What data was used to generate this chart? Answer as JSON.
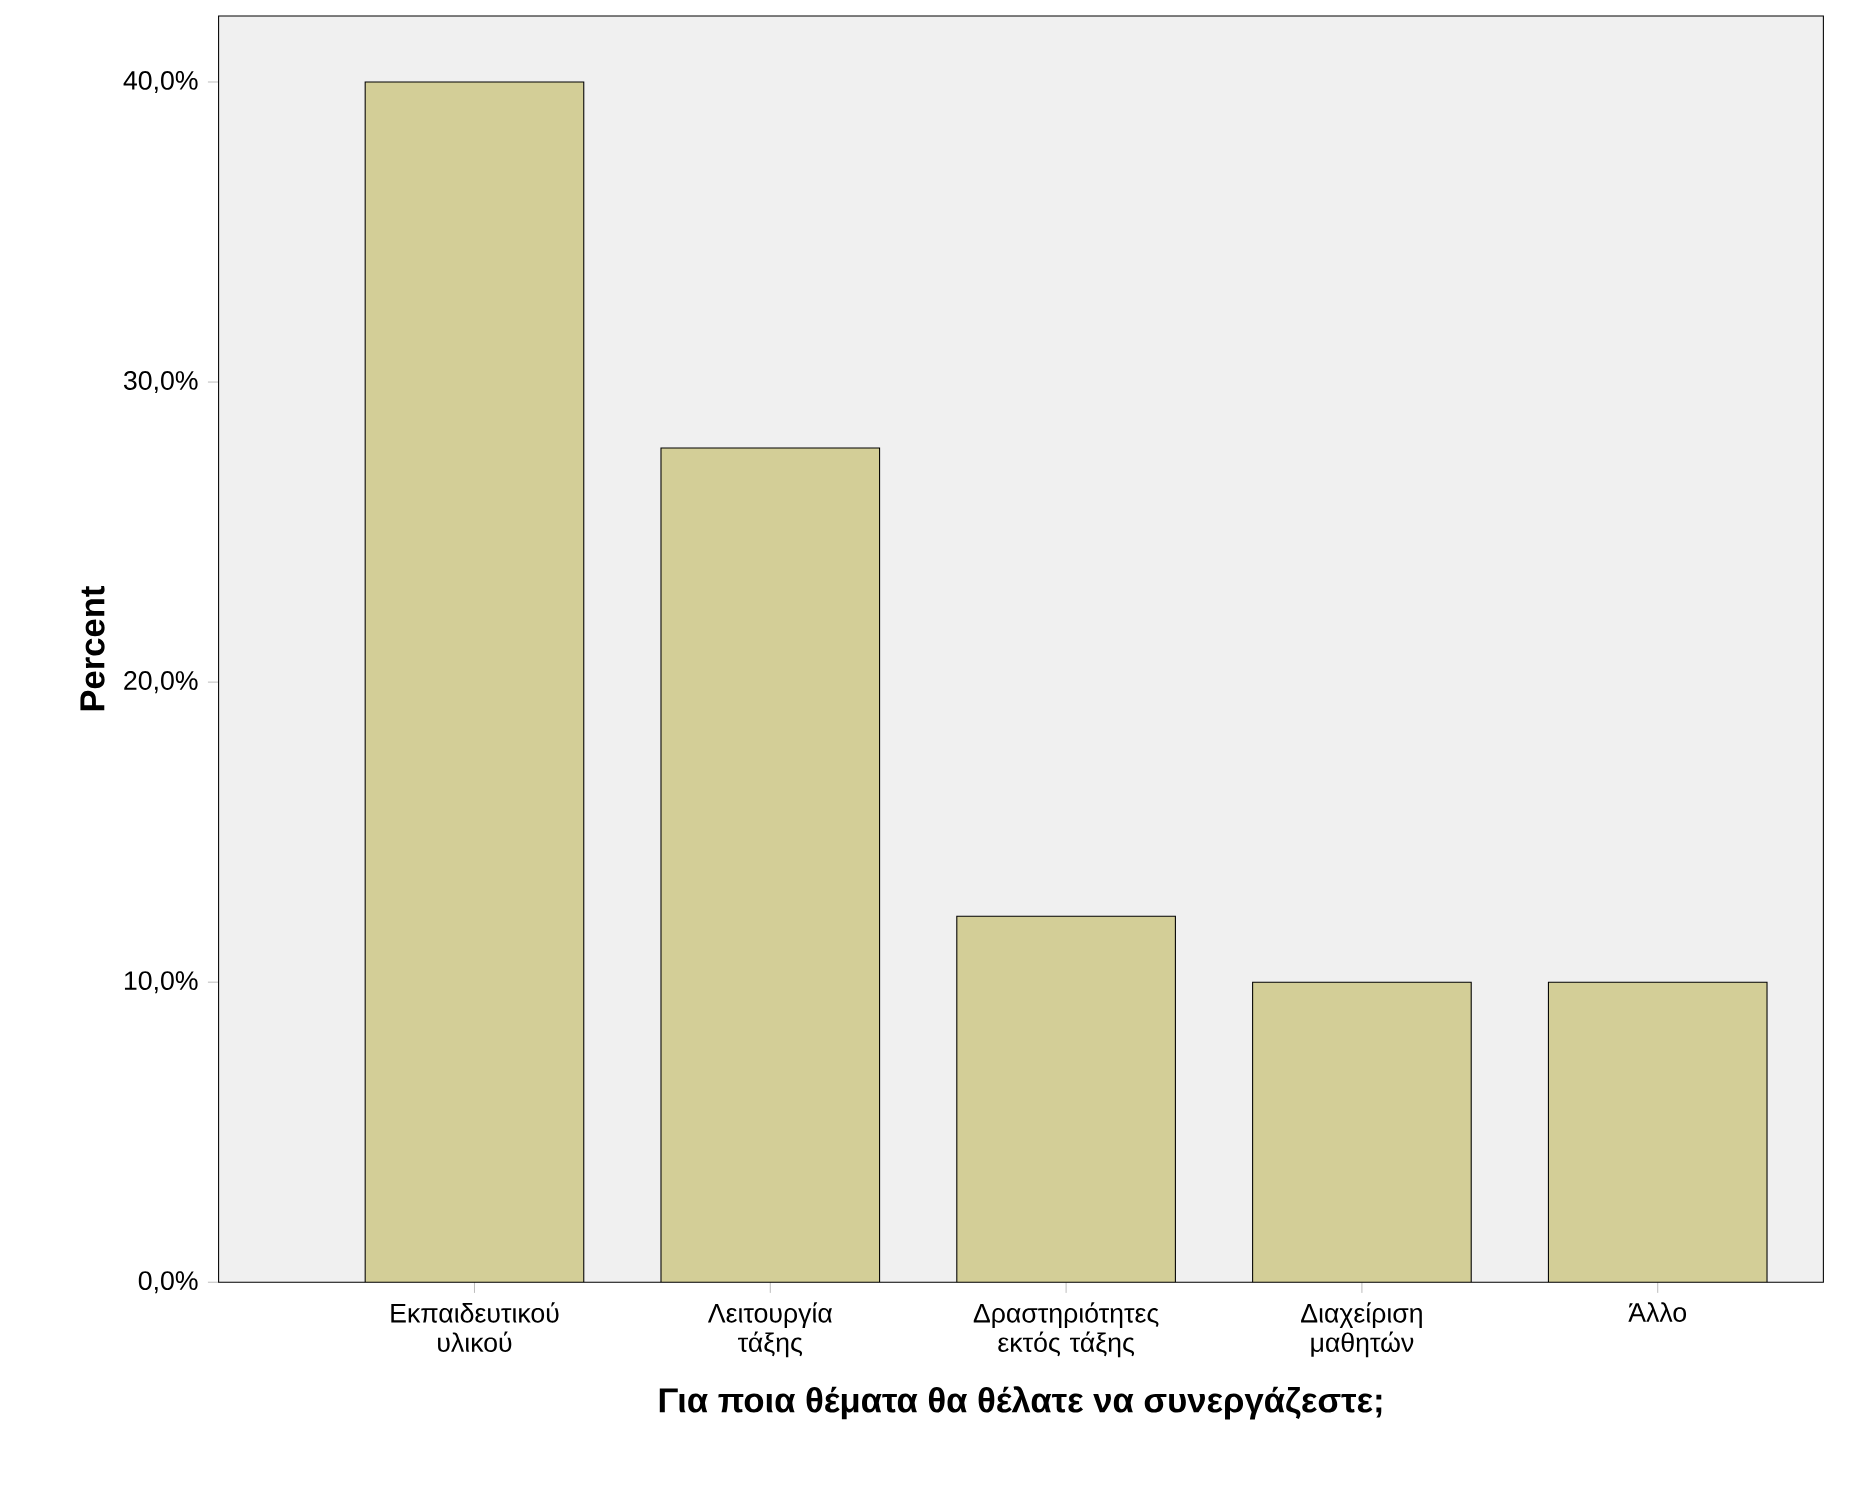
{
  "chart_data": {
    "type": "bar",
    "xlabel": "Για ποια θέματα θα θέλατε να συνεργάζεστε;",
    "ylabel": "Percent",
    "categories": [
      "Εκπαιδευτικού υλικού",
      "Λειτουργία τάξης",
      "Δραστηριότητες εκτός τάξης",
      "Διαχείριση μαθητών",
      "Άλλο"
    ],
    "values": [
      40,
      27.8,
      12.2,
      10,
      10
    ],
    "color": "#d3ce97",
    "ylim": [
      0,
      42.2
    ],
    "yticks": [
      {
        "value": 0,
        "label": "0,0%"
      },
      {
        "value": 10,
        "label": "10,0%"
      },
      {
        "value": 20,
        "label": "20,0%"
      },
      {
        "value": 30,
        "label": "30,0%"
      },
      {
        "value": 40,
        "label": "40,0%"
      }
    ],
    "grid": false
  }
}
